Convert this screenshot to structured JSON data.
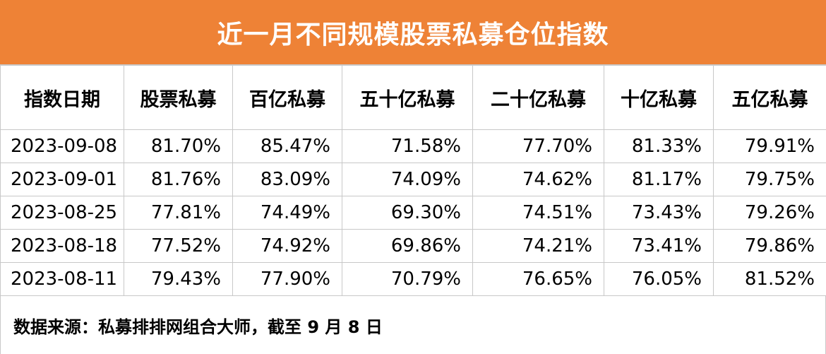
{
  "title": "近一月不同规模股票私募仓位指数",
  "colors": {
    "header_bg": "#EE8236",
    "header_text": "#FFFFFF",
    "grid_line": "#C8C8C8"
  },
  "table": {
    "headers": [
      "指数日期",
      "股票私募",
      "百亿私募",
      "五十亿私募",
      "二十亿私募",
      "十亿私募",
      "五亿私募"
    ],
    "rows": [
      [
        "2023-09-08",
        "81.70%",
        "85.47%",
        "71.58%",
        "77.70%",
        "81.33%",
        "79.91%"
      ],
      [
        "2023-09-01",
        "81.76%",
        "83.09%",
        "74.09%",
        "74.62%",
        "81.17%",
        "79.75%"
      ],
      [
        "2023-08-25",
        "77.81%",
        "74.49%",
        "69.30%",
        "74.51%",
        "73.43%",
        "79.26%"
      ],
      [
        "2023-08-18",
        "77.52%",
        "74.92%",
        "69.86%",
        "74.21%",
        "73.41%",
        "79.86%"
      ],
      [
        "2023-08-11",
        "79.43%",
        "77.90%",
        "70.79%",
        "76.65%",
        "76.05%",
        "81.52%"
      ]
    ]
  },
  "footnote": "数据来源：私募排排网组合大师，截至 9 月 8 日"
}
